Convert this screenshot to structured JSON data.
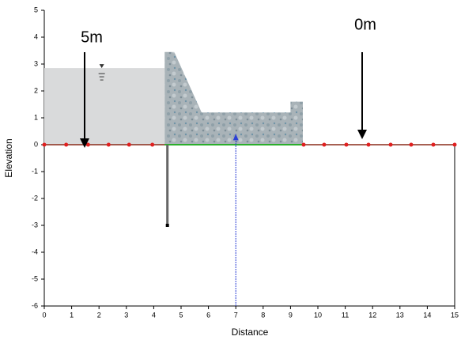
{
  "chart_data": {
    "type": "profile",
    "xlabel": "Distance",
    "ylabel": "Elevation",
    "xlim": [
      0,
      15
    ],
    "ylim": [
      -6,
      5
    ],
    "xticks": [
      0,
      1,
      2,
      3,
      4,
      5,
      6,
      7,
      8,
      9,
      10,
      11,
      12,
      13,
      14,
      15
    ],
    "yticks": [
      -6,
      -5,
      -4,
      -3,
      -2,
      -1,
      0,
      1,
      2,
      3,
      4,
      5
    ],
    "reservoir": {
      "x": [
        0,
        4.4
      ],
      "level": 2.85,
      "color": "#d9dadb"
    },
    "dam": {
      "x": [
        4.4,
        4.4,
        4.75,
        5.75,
        9.0,
        9.0,
        9.45,
        9.45
      ],
      "y": [
        0,
        3.45,
        3.45,
        1.2,
        1.2,
        1.6,
        1.6,
        0
      ],
      "color": "#a9b3b8"
    },
    "sheet_pile": {
      "x": 4.5,
      "bottom": -3
    },
    "flow_line": {
      "x": 7,
      "y": [
        -6,
        0.4
      ],
      "color": "#2b3fd6"
    },
    "base_line": {
      "x": [
        4.4,
        9.45
      ],
      "color": "#2cae2c"
    },
    "boundary_nodes": {
      "x": [
        0,
        0.8,
        1.6,
        2.35,
        3.1,
        3.95,
        9.48,
        10.23,
        11.04,
        11.85,
        12.66,
        13.41,
        14.22,
        15
      ],
      "color": "#e02020"
    },
    "annotations": [
      "5m",
      "0m"
    ]
  }
}
